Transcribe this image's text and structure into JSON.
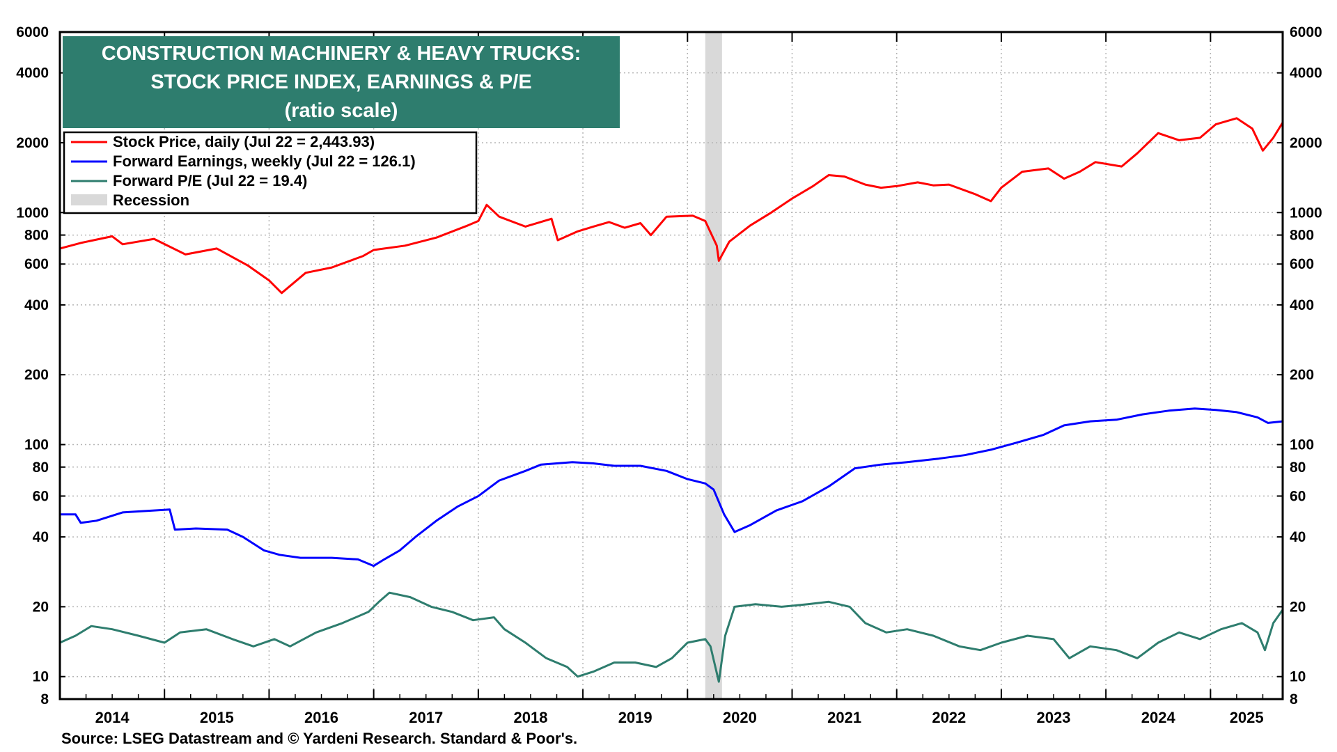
{
  "chart_data": {
    "type": "line",
    "title_lines": [
      "CONSTRUCTION MACHINERY & HEAVY TRUCKS:",
      "STOCK PRICE INDEX, EARNINGS & P/E",
      "(ratio scale)"
    ],
    "source": "Source: LSEG Datastream and © Yardeni Research. Standard & Poor's.",
    "y_scale": "log",
    "ylim": [
      8,
      6000
    ],
    "xlim": [
      2014.0,
      2025.69
    ],
    "y_ticks": [
      {
        "value": 6000,
        "label": "6000"
      },
      {
        "value": 4000,
        "label": "4000"
      },
      {
        "value": 2000,
        "label": "2000"
      },
      {
        "value": 1000,
        "label": "1000"
      },
      {
        "value": 800,
        "label": "800"
      },
      {
        "value": 600,
        "label": "600"
      },
      {
        "value": 400,
        "label": "400"
      },
      {
        "value": 200,
        "label": "200"
      },
      {
        "value": 100,
        "label": "100"
      },
      {
        "value": 80,
        "label": "80"
      },
      {
        "value": 60,
        "label": "60"
      },
      {
        "value": 40,
        "label": "40"
      },
      {
        "value": 20,
        "label": "20"
      },
      {
        "value": 10,
        "label": "10"
      },
      {
        "value": 8,
        "label": "8"
      }
    ],
    "x_tick_labels": [
      "2014",
      "2015",
      "2016",
      "2017",
      "2018",
      "2019",
      "2020",
      "2021",
      "2022",
      "2023",
      "2024",
      "2025"
    ],
    "grid": true,
    "legend_position": "top-left",
    "recession": {
      "label": "Recession",
      "start": 2020.17,
      "end": 2020.33,
      "color": "#d9d9d9"
    },
    "series": [
      {
        "name": "Stock Price, daily (Jul 22 = 2,443.93)",
        "color": "#ff0000",
        "points": [
          [
            2014.0,
            700
          ],
          [
            2014.2,
            740
          ],
          [
            2014.5,
            790
          ],
          [
            2014.6,
            730
          ],
          [
            2014.9,
            770
          ],
          [
            2015.2,
            660
          ],
          [
            2015.5,
            700
          ],
          [
            2015.8,
            590
          ],
          [
            2016.0,
            510
          ],
          [
            2016.12,
            450
          ],
          [
            2016.35,
            550
          ],
          [
            2016.6,
            580
          ],
          [
            2016.9,
            650
          ],
          [
            2017.0,
            690
          ],
          [
            2017.3,
            720
          ],
          [
            2017.6,
            780
          ],
          [
            2017.9,
            880
          ],
          [
            2018.0,
            920
          ],
          [
            2018.08,
            1080
          ],
          [
            2018.2,
            960
          ],
          [
            2018.45,
            870
          ],
          [
            2018.7,
            940
          ],
          [
            2018.76,
            760
          ],
          [
            2018.95,
            830
          ],
          [
            2019.1,
            870
          ],
          [
            2019.25,
            910
          ],
          [
            2019.4,
            860
          ],
          [
            2019.55,
            900
          ],
          [
            2019.65,
            800
          ],
          [
            2019.8,
            960
          ],
          [
            2020.05,
            970
          ],
          [
            2020.17,
            920
          ],
          [
            2020.28,
            720
          ],
          [
            2020.3,
            620
          ],
          [
            2020.4,
            750
          ],
          [
            2020.6,
            880
          ],
          [
            2020.8,
            1000
          ],
          [
            2021.0,
            1150
          ],
          [
            2021.2,
            1300
          ],
          [
            2021.35,
            1450
          ],
          [
            2021.5,
            1430
          ],
          [
            2021.7,
            1320
          ],
          [
            2021.85,
            1280
          ],
          [
            2022.0,
            1300
          ],
          [
            2022.2,
            1350
          ],
          [
            2022.35,
            1310
          ],
          [
            2022.5,
            1320
          ],
          [
            2022.75,
            1200
          ],
          [
            2022.9,
            1120
          ],
          [
            2023.0,
            1280
          ],
          [
            2023.2,
            1500
          ],
          [
            2023.45,
            1550
          ],
          [
            2023.6,
            1400
          ],
          [
            2023.75,
            1500
          ],
          [
            2023.9,
            1650
          ],
          [
            2024.15,
            1580
          ],
          [
            2024.3,
            1800
          ],
          [
            2024.5,
            2200
          ],
          [
            2024.7,
            2050
          ],
          [
            2024.9,
            2100
          ],
          [
            2025.05,
            2400
          ],
          [
            2025.25,
            2550
          ],
          [
            2025.4,
            2300
          ],
          [
            2025.5,
            1850
          ],
          [
            2025.6,
            2100
          ],
          [
            2025.69,
            2444
          ]
        ]
      },
      {
        "name": "Forward Earnings, weekly (Jul 22 = 126.1)",
        "color": "#0000ff",
        "points": [
          [
            2014.0,
            50
          ],
          [
            2014.15,
            50
          ],
          [
            2014.2,
            46
          ],
          [
            2014.35,
            47
          ],
          [
            2014.6,
            51
          ],
          [
            2014.9,
            52
          ],
          [
            2015.05,
            52.5
          ],
          [
            2015.1,
            43
          ],
          [
            2015.3,
            43.5
          ],
          [
            2015.6,
            43
          ],
          [
            2015.75,
            40
          ],
          [
            2015.95,
            35
          ],
          [
            2016.1,
            33.5
          ],
          [
            2016.3,
            32.5
          ],
          [
            2016.6,
            32.5
          ],
          [
            2016.85,
            32
          ],
          [
            2017.0,
            30
          ],
          [
            2017.1,
            32
          ],
          [
            2017.25,
            35
          ],
          [
            2017.4,
            40
          ],
          [
            2017.6,
            47
          ],
          [
            2017.8,
            54
          ],
          [
            2018.0,
            60
          ],
          [
            2018.2,
            70
          ],
          [
            2018.45,
            77
          ],
          [
            2018.6,
            82
          ],
          [
            2018.9,
            84
          ],
          [
            2019.1,
            83
          ],
          [
            2019.3,
            81
          ],
          [
            2019.55,
            81
          ],
          [
            2019.8,
            77
          ],
          [
            2020.0,
            71
          ],
          [
            2020.17,
            68
          ],
          [
            2020.25,
            64
          ],
          [
            2020.35,
            50
          ],
          [
            2020.45,
            42
          ],
          [
            2020.6,
            45
          ],
          [
            2020.85,
            52
          ],
          [
            2021.1,
            57
          ],
          [
            2021.35,
            66
          ],
          [
            2021.6,
            79
          ],
          [
            2021.85,
            82
          ],
          [
            2022.1,
            84
          ],
          [
            2022.4,
            87
          ],
          [
            2022.65,
            90
          ],
          [
            2022.9,
            95
          ],
          [
            2023.15,
            102
          ],
          [
            2023.4,
            110
          ],
          [
            2023.6,
            121
          ],
          [
            2023.85,
            126
          ],
          [
            2024.1,
            128
          ],
          [
            2024.35,
            135
          ],
          [
            2024.6,
            140
          ],
          [
            2024.85,
            143
          ],
          [
            2025.05,
            141
          ],
          [
            2025.25,
            138
          ],
          [
            2025.45,
            131
          ],
          [
            2025.55,
            124
          ],
          [
            2025.69,
            126
          ]
        ]
      },
      {
        "name": "Forward P/E (Jul 22 = 19.4)",
        "color": "#2e7d6e",
        "points": [
          [
            2014.0,
            14
          ],
          [
            2014.15,
            15
          ],
          [
            2014.3,
            16.5
          ],
          [
            2014.5,
            16
          ],
          [
            2014.75,
            15
          ],
          [
            2015.0,
            14
          ],
          [
            2015.15,
            15.5
          ],
          [
            2015.4,
            16
          ],
          [
            2015.65,
            14.5
          ],
          [
            2015.85,
            13.5
          ],
          [
            2016.05,
            14.5
          ],
          [
            2016.2,
            13.5
          ],
          [
            2016.45,
            15.5
          ],
          [
            2016.7,
            17
          ],
          [
            2016.95,
            19
          ],
          [
            2017.05,
            21
          ],
          [
            2017.15,
            23
          ],
          [
            2017.35,
            22
          ],
          [
            2017.55,
            20
          ],
          [
            2017.75,
            19
          ],
          [
            2017.95,
            17.5
          ],
          [
            2018.15,
            18
          ],
          [
            2018.25,
            16
          ],
          [
            2018.45,
            14
          ],
          [
            2018.65,
            12
          ],
          [
            2018.85,
            11
          ],
          [
            2018.95,
            10
          ],
          [
            2019.1,
            10.5
          ],
          [
            2019.3,
            11.5
          ],
          [
            2019.5,
            11.5
          ],
          [
            2019.7,
            11
          ],
          [
            2019.85,
            12
          ],
          [
            2020.0,
            14
          ],
          [
            2020.17,
            14.5
          ],
          [
            2020.22,
            13.5
          ],
          [
            2020.3,
            9.5
          ],
          [
            2020.36,
            15
          ],
          [
            2020.45,
            20
          ],
          [
            2020.65,
            20.5
          ],
          [
            2020.9,
            20
          ],
          [
            2021.15,
            20.5
          ],
          [
            2021.35,
            21
          ],
          [
            2021.55,
            20
          ],
          [
            2021.7,
            17
          ],
          [
            2021.9,
            15.5
          ],
          [
            2022.1,
            16
          ],
          [
            2022.35,
            15
          ],
          [
            2022.6,
            13.5
          ],
          [
            2022.8,
            13
          ],
          [
            2023.0,
            14
          ],
          [
            2023.25,
            15
          ],
          [
            2023.5,
            14.5
          ],
          [
            2023.65,
            12
          ],
          [
            2023.85,
            13.5
          ],
          [
            2024.1,
            13
          ],
          [
            2024.3,
            12
          ],
          [
            2024.5,
            14
          ],
          [
            2024.7,
            15.5
          ],
          [
            2024.9,
            14.5
          ],
          [
            2025.1,
            16
          ],
          [
            2025.3,
            17
          ],
          [
            2025.45,
            15.5
          ],
          [
            2025.52,
            13
          ],
          [
            2025.6,
            17
          ],
          [
            2025.69,
            19.4
          ]
        ]
      }
    ]
  }
}
